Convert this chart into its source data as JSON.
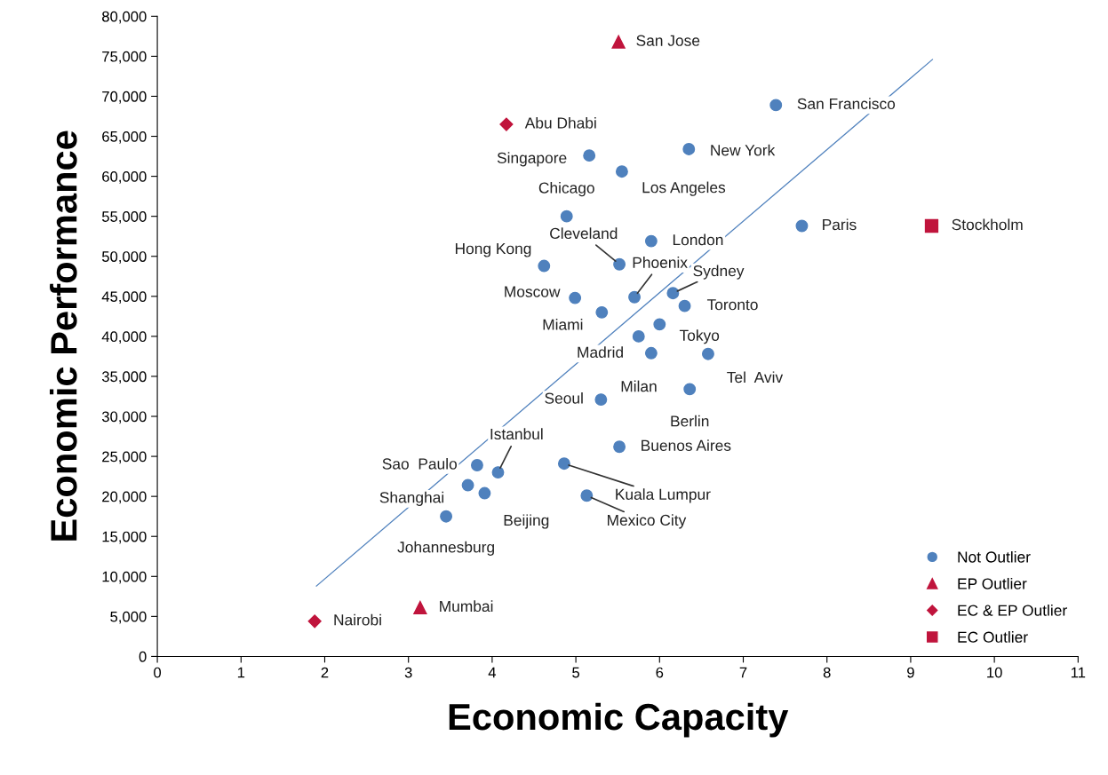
{
  "chart_data": {
    "type": "scatter",
    "xlabel": "Economic Capacity",
    "ylabel": "Economic Performance",
    "xlim": [
      0,
      11
    ],
    "xticks": [
      0,
      1,
      2,
      3,
      4,
      5,
      6,
      7,
      8,
      9,
      10,
      11
    ],
    "ylim": [
      0,
      80000
    ],
    "yticks": [
      {
        "value": 0,
        "label": "0"
      },
      {
        "value": 5000,
        "label": "5,000"
      },
      {
        "value": 10000,
        "label": "10,000"
      },
      {
        "value": 15000,
        "label": "15,000"
      },
      {
        "value": 20000,
        "label": "20,000"
      },
      {
        "value": 25000,
        "label": "25,000"
      },
      {
        "value": 30000,
        "label": "30,000"
      },
      {
        "value": 35000,
        "label": "35,000"
      },
      {
        "value": 40000,
        "label": "40,000"
      },
      {
        "value": 45000,
        "label": "45,000"
      },
      {
        "value": 50000,
        "label": "50,000"
      },
      {
        "value": 55000,
        "label": "55,000"
      },
      {
        "value": 60000,
        "label": "60,000"
      },
      {
        "value": 65000,
        "label": "65,000"
      },
      {
        "value": 70000,
        "label": "70,000"
      },
      {
        "value": 75000,
        "label": "75,000"
      },
      {
        "value": 80000,
        "label": "80,000"
      }
    ],
    "grid": false,
    "legend": "bottom right",
    "series": [
      {
        "name": "Not Outlier",
        "color": "#4f81bd",
        "marker": "circle",
        "x": [
          7.39,
          5.16,
          6.35,
          5.55,
          4.89,
          7.7,
          5.9,
          4.62,
          5.52,
          4.99,
          5.7,
          6.16,
          5.31,
          6.3,
          6.0,
          5.75,
          5.9,
          6.58,
          6.36,
          5.3,
          5.52,
          4.07,
          3.82,
          4.86,
          3.71,
          3.91,
          5.13,
          3.45
        ],
        "values": [
          68900,
          62600,
          63400,
          60600,
          55000,
          53800,
          51900,
          48800,
          49000,
          44800,
          44900,
          45400,
          43000,
          43800,
          41500,
          40000,
          37900,
          37800,
          33400,
          32100,
          26200,
          23000,
          23900,
          24100,
          21400,
          20400,
          20100,
          17500
        ]
      },
      {
        "name": "EP Outlier",
        "color": "#c0143c",
        "marker": "triangle",
        "x": [
          5.51,
          3.14
        ],
        "values": [
          76800,
          6100
        ]
      },
      {
        "name": "EC & EP Outlier",
        "color": "#c0143c",
        "marker": "diamond",
        "x": [
          4.17,
          1.88
        ],
        "values": [
          66500,
          4400
        ]
      },
      {
        "name": "EC Outlier",
        "color": "#c0143c",
        "marker": "square",
        "x": [
          9.25
        ],
        "values": [
          53800
        ]
      },
      {
        "type": "line",
        "color": "#4f81bd",
        "x": [
          1.9,
          9.26
        ],
        "values": [
          8800,
          74600
        ]
      }
    ],
    "annotations": [
      {
        "text": "San Jose",
        "x": 5.51,
        "y": 76800
      },
      {
        "text": "San Francisco",
        "x": 7.39,
        "y": 68900
      },
      {
        "text": "Abu Dhabi",
        "x": 4.17,
        "y": 66500
      },
      {
        "text": "Singapore",
        "x": 5.16,
        "y": 62600
      },
      {
        "text": "New York",
        "x": 6.35,
        "y": 63400
      },
      {
        "text": "Los Angeles",
        "x": 5.55,
        "y": 60600
      },
      {
        "text": "Chicago",
        "x": 4.89,
        "y": 55000
      },
      {
        "text": "Paris",
        "x": 7.7,
        "y": 53800
      },
      {
        "text": "Stockholm",
        "x": 9.25,
        "y": 53800
      },
      {
        "text": "London",
        "x": 5.9,
        "y": 51900
      },
      {
        "text": "Hong Kong",
        "x": 4.62,
        "y": 48800
      },
      {
        "text": "Cleveland",
        "x": 5.52,
        "y": 49000
      },
      {
        "text": "Moscow",
        "x": 4.99,
        "y": 44800
      },
      {
        "text": "Phoenix",
        "x": 5.7,
        "y": 44900
      },
      {
        "text": "Sydney",
        "x": 6.16,
        "y": 45400
      },
      {
        "text": "Miami",
        "x": 5.31,
        "y": 43000
      },
      {
        "text": "Toronto",
        "x": 6.3,
        "y": 43800
      },
      {
        "text": "Tokyo",
        "x": 6.0,
        "y": 41500
      },
      {
        "text": "Madrid",
        "x": 5.75,
        "y": 40000
      },
      {
        "text": "Milan",
        "x": 5.9,
        "y": 37900
      },
      {
        "text": "Tel  Aviv",
        "x": 6.58,
        "y": 37800
      },
      {
        "text": "Berlin",
        "x": 6.36,
        "y": 33400
      },
      {
        "text": "Seoul",
        "x": 5.3,
        "y": 32100
      },
      {
        "text": "Buenos Aires",
        "x": 5.52,
        "y": 26200
      },
      {
        "text": "Istanbul",
        "x": 4.07,
        "y": 23000
      },
      {
        "text": "Sao  Paulo",
        "x": 3.82,
        "y": 23900
      },
      {
        "text": "Kuala Lumpur",
        "x": 4.86,
        "y": 24100
      },
      {
        "text": "Shanghai",
        "x": 3.71,
        "y": 21400
      },
      {
        "text": "Beijing",
        "x": 3.91,
        "y": 20400
      },
      {
        "text": "Mexico City",
        "x": 5.13,
        "y": 20100
      },
      {
        "text": "Johannesburg",
        "x": 3.45,
        "y": 17500
      },
      {
        "text": "Mumbai",
        "x": 3.14,
        "y": 6100
      },
      {
        "text": "Nairobi",
        "x": 1.88,
        "y": 4400
      }
    ]
  }
}
